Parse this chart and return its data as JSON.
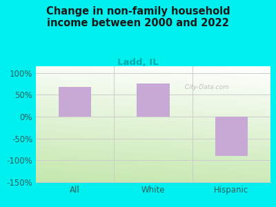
{
  "title": "Change in non-family household\nincome between 2000 and 2022",
  "subtitle": "Ladd, IL",
  "categories": [
    "All",
    "White",
    "Hispanic"
  ],
  "values": [
    67,
    75,
    -90
  ],
  "bar_color": "#c8a8d4",
  "bar_width": 0.42,
  "ylim": [
    -150,
    115
  ],
  "yticks": [
    -150,
    -100,
    -50,
    0,
    50,
    100
  ],
  "ytick_labels": [
    "-150%",
    "-100%",
    "-50%",
    "0%",
    "50%",
    "100%"
  ],
  "background_color": "#00EFEF",
  "plot_bg_topleft": "#e8f5e0",
  "plot_bg_topright": "#ffffff",
  "plot_bg_bottomleft": "#c8e6b0",
  "plot_bg_bottomright": "#f0f8e8",
  "grid_color": "#cccccc",
  "title_color": "#1a1a1a",
  "subtitle_color": "#00aaaa",
  "tick_color": "#2a6060",
  "watermark": "  City-Data.com",
  "title_fontsize": 10.5,
  "subtitle_fontsize": 9.5,
  "tick_fontsize": 8.5
}
